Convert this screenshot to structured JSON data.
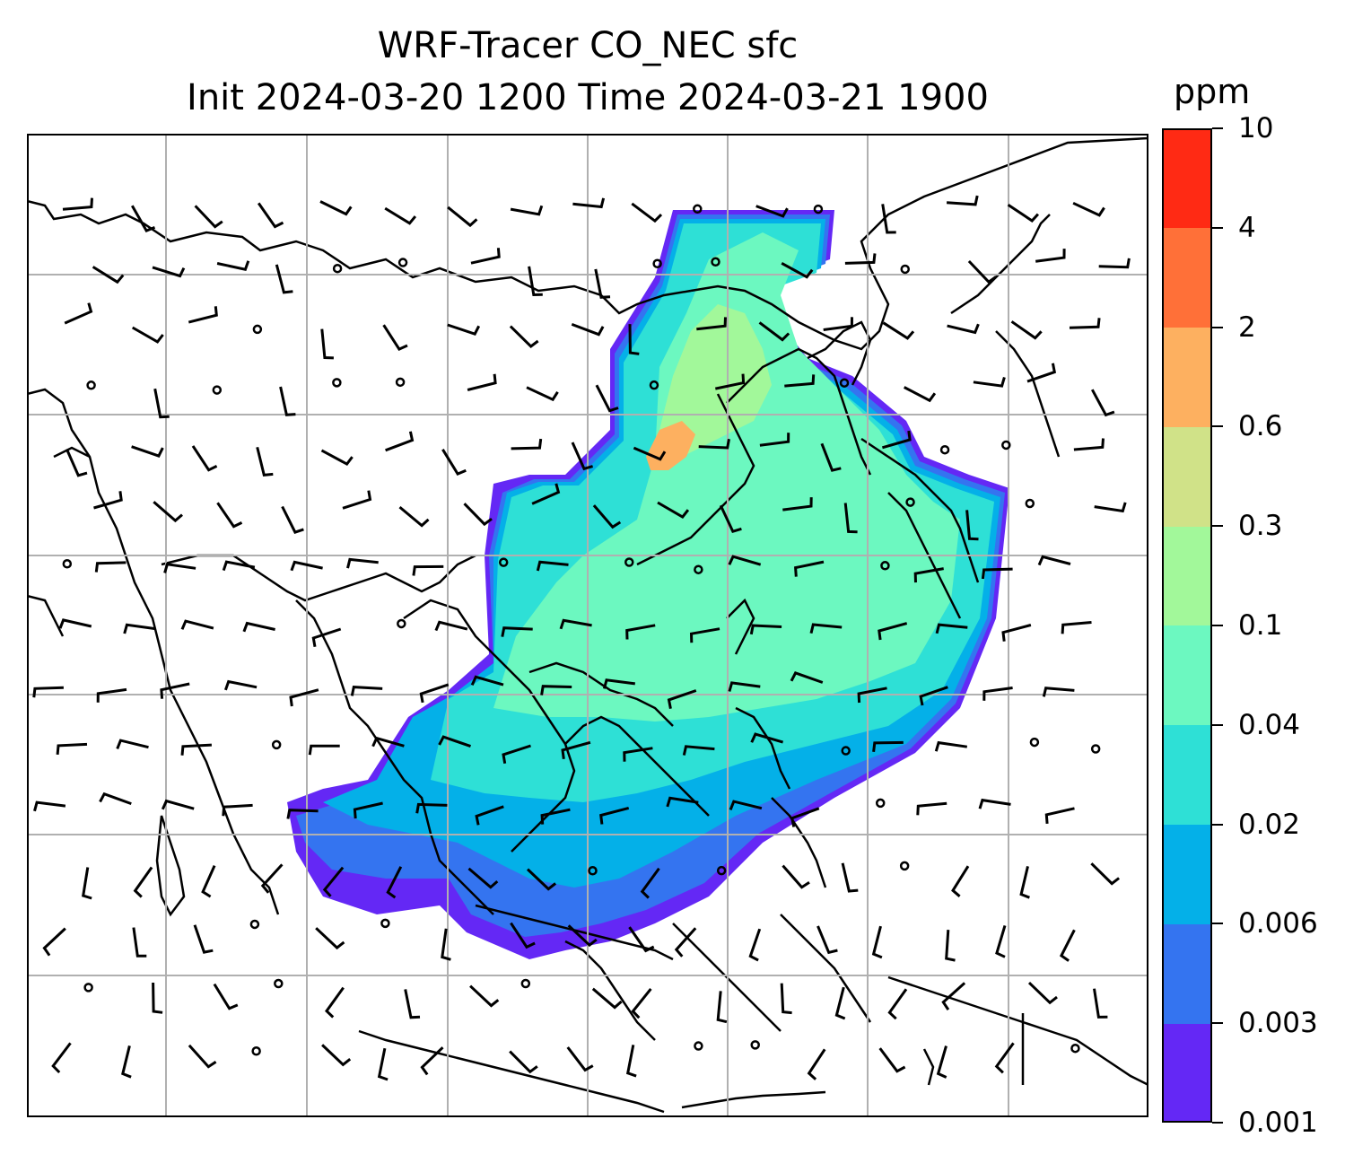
{
  "title": {
    "line1": "WRF-Tracer CO_NEC sfc",
    "line2": "Init 2024-03-20 1200 Time 2024-03-21 1900"
  },
  "colorbar": {
    "unit": "ppm",
    "levels": [
      "0.001",
      "0.003",
      "0.006",
      "0.02",
      "0.04",
      "0.1",
      "0.3",
      "0.6",
      "2",
      "4",
      "10"
    ],
    "colors": [
      "#6428f5",
      "#3474f0",
      "#04b0e8",
      "#2ee0d6",
      "#6cf8c0",
      "#a2f89a",
      "#d0e288",
      "#fdb060",
      "#ff7038",
      "#ff2a14"
    ]
  },
  "map": {
    "gridlines": "on",
    "variable": "CO_NEC tracer concentration with surface wind barbs",
    "plume_color_mid": "#6cf8c0"
  }
}
